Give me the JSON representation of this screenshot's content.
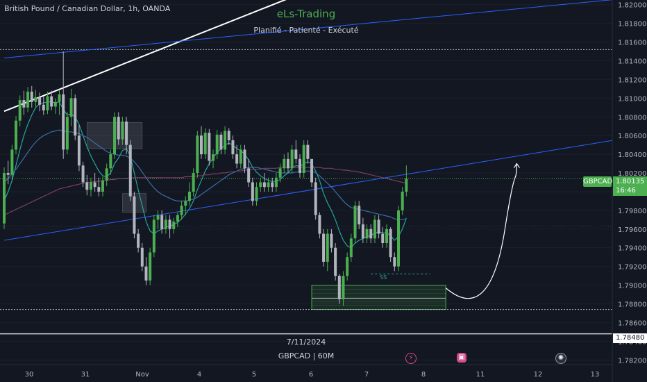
{
  "symbol_title": "British Pound / Canadian Dollar, 1h, OANDA",
  "watermark": {
    "title": "eLs-Trading",
    "subtitle": "Planifié - Patienté - Exécuté"
  },
  "date_label": "7/11/2024",
  "interval_label": "GBPCAD | 60M",
  "price_badge": "GBPCAD",
  "last_price": {
    "value": "1.80135",
    "countdown": "16:46"
  },
  "hline_price": "1.78480",
  "level_label": "SS",
  "bottom_icons": [
    "lightning-icon",
    "calendar-icon",
    "flag-icon"
  ],
  "colors": {
    "background": "#131722",
    "up": "#4caf50",
    "down": "#b2b5be",
    "zone": "#4caf50",
    "accent": "#4caf50"
  },
  "chart_data": {
    "type": "candlestick",
    "ylim": [
      1.7815,
      1.8205
    ],
    "y_ticks": [
      "1.82000",
      "1.81800",
      "1.81600",
      "1.81400",
      "1.81200",
      "1.81000",
      "1.80800",
      "1.80600",
      "1.80400",
      "1.80200",
      "1.80000",
      "1.79800",
      "1.79600",
      "1.79400",
      "1.79200",
      "1.79000",
      "1.78800",
      "1.78600",
      "1.78400",
      "1.78200"
    ],
    "x_ticks": [
      "30",
      "31",
      "Nov",
      "4",
      "5",
      "6",
      "7",
      "8",
      "11",
      "12",
      "13"
    ],
    "candles": [
      [
        1.7966,
        1.8026,
        1.796,
        1.802
      ],
      [
        1.802,
        1.8033,
        1.8008,
        1.8018
      ],
      [
        1.8018,
        1.805,
        1.8012,
        1.8045
      ],
      [
        1.8045,
        1.8081,
        1.804,
        1.8076
      ],
      [
        1.8076,
        1.8103,
        1.807,
        1.8098
      ],
      [
        1.8098,
        1.8108,
        1.8082,
        1.809
      ],
      [
        1.809,
        1.8112,
        1.8085,
        1.8107
      ],
      [
        1.8107,
        1.8113,
        1.809,
        1.8096
      ],
      [
        1.8096,
        1.8109,
        1.8091,
        1.8101
      ],
      [
        1.8101,
        1.8106,
        1.8086,
        1.8093
      ],
      [
        1.8093,
        1.8102,
        1.8082,
        1.8087
      ],
      [
        1.8087,
        1.8107,
        1.8083,
        1.8102
      ],
      [
        1.8102,
        1.8108,
        1.8087,
        1.8091
      ],
      [
        1.8091,
        1.81,
        1.8083,
        1.8096
      ],
      [
        1.8096,
        1.8109,
        1.8082,
        1.8104
      ],
      [
        1.8104,
        1.815,
        1.8035,
        1.8045
      ],
      [
        1.8045,
        1.8085,
        1.804,
        1.808
      ],
      [
        1.808,
        1.811,
        1.807,
        1.81
      ],
      [
        1.81,
        1.8104,
        1.8055,
        1.806
      ],
      [
        1.806,
        1.8071,
        1.8022,
        1.8028
      ],
      [
        1.8028,
        1.8032,
        1.8005,
        1.801
      ],
      [
        1.801,
        1.8018,
        1.7996,
        1.8002
      ],
      [
        1.8002,
        1.8015,
        1.7995,
        1.801
      ],
      [
        1.801,
        1.802,
        1.8,
        1.8005
      ],
      [
        1.8005,
        1.8015,
        1.7995,
        1.8
      ],
      [
        1.8,
        1.8016,
        1.7995,
        1.8012
      ],
      [
        1.8012,
        1.803,
        1.8006,
        1.8025
      ],
      [
        1.8025,
        1.8045,
        1.8018,
        1.804
      ],
      [
        1.804,
        1.8085,
        1.8035,
        1.808
      ],
      [
        1.808,
        1.8085,
        1.805,
        1.8056
      ],
      [
        1.8056,
        1.808,
        1.805,
        1.8075
      ],
      [
        1.8075,
        1.808,
        1.804,
        1.805
      ],
      [
        1.805,
        1.8055,
        1.799,
        1.7995
      ],
      [
        1.7995,
        1.8,
        1.795,
        1.7955
      ],
      [
        1.7955,
        1.796,
        1.7935,
        1.794
      ],
      [
        1.794,
        1.7945,
        1.7915,
        1.792
      ],
      [
        1.792,
        1.793,
        1.79,
        1.7905
      ],
      [
        1.7905,
        1.794,
        1.79,
        1.7935
      ],
      [
        1.7935,
        1.7975,
        1.793,
        1.797
      ],
      [
        1.797,
        1.798,
        1.796,
        1.7975
      ],
      [
        1.7975,
        1.798,
        1.7955,
        1.796
      ],
      [
        1.796,
        1.7975,
        1.7955,
        1.797
      ],
      [
        1.797,
        1.7975,
        1.795,
        1.796
      ],
      [
        1.796,
        1.7972,
        1.7955,
        1.7968
      ],
      [
        1.7968,
        1.7978,
        1.7962,
        1.7975
      ],
      [
        1.7975,
        1.799,
        1.797,
        1.7985
      ],
      [
        1.7985,
        1.7995,
        1.7975,
        1.799
      ],
      [
        1.799,
        1.801,
        1.7985,
        1.8
      ],
      [
        1.8,
        1.8025,
        1.7995,
        1.802
      ],
      [
        1.802,
        1.8065,
        1.8015,
        1.806
      ],
      [
        1.806,
        1.807,
        1.8035,
        1.804
      ],
      [
        1.804,
        1.8068,
        1.8035,
        1.8063
      ],
      [
        1.8063,
        1.8067,
        1.8028,
        1.8033
      ],
      [
        1.8033,
        1.8045,
        1.8025,
        1.804
      ],
      [
        1.804,
        1.8066,
        1.8035,
        1.8061
      ],
      [
        1.8061,
        1.8064,
        1.804,
        1.8045
      ],
      [
        1.8045,
        1.807,
        1.804,
        1.8065
      ],
      [
        1.8065,
        1.8068,
        1.805,
        1.8055
      ],
      [
        1.8055,
        1.806,
        1.8035,
        1.804
      ],
      [
        1.804,
        1.805,
        1.8025,
        1.803
      ],
      [
        1.803,
        1.805,
        1.8025,
        1.8045
      ],
      [
        1.8045,
        1.805,
        1.802,
        1.8025
      ],
      [
        1.8025,
        1.8035,
        1.8005,
        1.801
      ],
      [
        1.801,
        1.8015,
        1.7985,
        1.799
      ],
      [
        1.799,
        1.801,
        1.7985,
        1.8005
      ],
      [
        1.8005,
        1.8015,
        1.8,
        1.801
      ],
      [
        1.801,
        1.802,
        1.8,
        1.8005
      ],
      [
        1.8005,
        1.8015,
        1.8,
        1.801
      ],
      [
        1.801,
        1.8015,
        1.8,
        1.8005
      ],
      [
        1.8005,
        1.802,
        1.8,
        1.8015
      ],
      [
        1.8015,
        1.803,
        1.801,
        1.8025
      ],
      [
        1.8025,
        1.804,
        1.802,
        1.8035
      ],
      [
        1.8035,
        1.8042,
        1.802,
        1.8025
      ],
      [
        1.8025,
        1.805,
        1.802,
        1.8045
      ],
      [
        1.8045,
        1.8055,
        1.803,
        1.8035
      ],
      [
        1.8035,
        1.804,
        1.8015,
        1.802
      ],
      [
        1.802,
        1.8055,
        1.8015,
        1.805
      ],
      [
        1.805,
        1.8055,
        1.803,
        1.8035
      ],
      [
        1.8035,
        1.8035,
        1.8005,
        1.801
      ],
      [
        1.801,
        1.8015,
        1.797,
        1.7975
      ],
      [
        1.7975,
        1.7978,
        1.795,
        1.7955
      ],
      [
        1.7955,
        1.796,
        1.792,
        1.7925
      ],
      [
        1.7925,
        1.796,
        1.7915,
        1.7955
      ],
      [
        1.7955,
        1.796,
        1.7935,
        1.794
      ],
      [
        1.794,
        1.7945,
        1.7905,
        1.791
      ],
      [
        1.791,
        1.7912,
        1.788,
        1.7885
      ],
      [
        1.7885,
        1.7915,
        1.7878,
        1.791
      ],
      [
        1.791,
        1.7935,
        1.7905,
        1.793
      ],
      [
        1.793,
        1.7955,
        1.7925,
        1.795
      ],
      [
        1.795,
        1.799,
        1.7945,
        1.7985
      ],
      [
        1.7985,
        1.799,
        1.796,
        1.7965
      ],
      [
        1.7965,
        1.7972,
        1.7945,
        1.795
      ],
      [
        1.795,
        1.7965,
        1.7945,
        1.796
      ],
      [
        1.796,
        1.7965,
        1.7945,
        1.795
      ],
      [
        1.795,
        1.7975,
        1.7945,
        1.797
      ],
      [
        1.797,
        1.7975,
        1.795,
        1.7955
      ],
      [
        1.7955,
        1.7962,
        1.794,
        1.7945
      ],
      [
        1.7945,
        1.7965,
        1.794,
        1.796
      ],
      [
        1.796,
        1.7962,
        1.7925,
        1.793
      ],
      [
        1.793,
        1.7935,
        1.7915,
        1.792
      ],
      [
        1.792,
        1.7985,
        1.7915,
        1.798
      ],
      [
        1.798,
        1.8005,
        1.7975,
        1.8
      ],
      [
        1.8,
        1.8028,
        1.7995,
        1.8014
      ]
    ],
    "moving_averages": [
      {
        "role": "short",
        "color": "#26a69a",
        "values": [
          1.799,
          1.8,
          1.8012,
          1.8028,
          1.8045,
          1.806,
          1.8072,
          1.8082,
          1.809,
          1.8094,
          1.8095,
          1.8096,
          1.8096,
          1.8095,
          1.8096,
          1.8088,
          1.8082,
          1.8083,
          1.808,
          1.8072,
          1.806,
          1.8048,
          1.8038,
          1.803,
          1.8022,
          1.8017,
          1.8016,
          1.802,
          1.803,
          1.8036,
          1.8044,
          1.8046,
          1.8038,
          1.802,
          1.8002,
          1.7985,
          1.7968,
          1.7958,
          1.7955,
          1.7958,
          1.796,
          1.7962,
          1.7963,
          1.7965,
          1.7967,
          1.7971,
          1.7976,
          1.7982,
          1.799,
          1.8002,
          1.8012,
          1.8022,
          1.803,
          1.8036,
          1.8042,
          1.8046,
          1.805,
          1.8052,
          1.805,
          1.8046,
          1.8044,
          1.804,
          1.8034,
          1.8026,
          1.8021,
          1.8017,
          1.8014,
          1.8012,
          1.8011,
          1.8011,
          1.8013,
          1.8017,
          1.802,
          1.8025,
          1.8028,
          1.8027,
          1.803,
          1.8032,
          1.803,
          1.8022,
          1.8012,
          1.7998,
          1.7988,
          1.798,
          1.797,
          1.7958,
          1.7948,
          1.7942,
          1.794,
          1.7945,
          1.7948,
          1.795,
          1.7952,
          1.7953,
          1.7956,
          1.7957,
          1.7956,
          1.7956,
          1.7953,
          1.7948,
          1.7952,
          1.796,
          1.7972
        ]
      },
      {
        "role": "mid",
        "color": "#3a6fa8",
        "values": [
          1.801,
          1.8014,
          1.8019,
          1.8024,
          1.803,
          1.8036,
          1.8042,
          1.8048,
          1.8053,
          1.8057,
          1.806,
          1.8062,
          1.8064,
          1.8065,
          1.8066,
          1.8065,
          1.8064,
          1.8064,
          1.8063,
          1.8062,
          1.806,
          1.8058,
          1.8055,
          1.8052,
          1.8049,
          1.8046,
          1.8043,
          1.8041,
          1.804,
          1.8039,
          1.8039,
          1.8038,
          1.8036,
          1.8032,
          1.8027,
          1.8021,
          1.8015,
          1.8009,
          1.8004,
          1.8,
          1.7997,
          1.7995,
          1.7993,
          1.7991,
          1.799,
          1.799,
          1.799,
          1.7991,
          1.7992,
          1.7994,
          1.7997,
          1.8,
          1.8003,
          1.8006,
          1.8009,
          1.8012,
          1.8015,
          1.8018,
          1.802,
          1.8022,
          1.8024,
          1.8025,
          1.8026,
          1.8026,
          1.8026,
          1.8025,
          1.8024,
          1.8023,
          1.8022,
          1.8021,
          1.802,
          1.802,
          1.802,
          1.802,
          1.8021,
          1.8021,
          1.8022,
          1.8022,
          1.8022,
          1.802,
          1.8017,
          1.8013,
          1.8009,
          1.8005,
          1.8,
          1.7995,
          1.799,
          1.7986,
          1.7983,
          1.7982,
          1.7981,
          1.798,
          1.7979,
          1.7978,
          1.7977,
          1.7976,
          1.7975,
          1.7974,
          1.7973,
          1.7971,
          1.797,
          1.797,
          1.7971
        ]
      },
      {
        "role": "long",
        "color": "#7a3f62",
        "values": [
          1.7975,
          1.7977,
          1.7979,
          1.7981,
          1.7983,
          1.7985,
          1.7987,
          1.7989,
          1.7991,
          1.7993,
          1.7995,
          1.7997,
          1.7999,
          1.8001,
          1.8003,
          1.8004,
          1.8005,
          1.8006,
          1.8007,
          1.8008,
          1.8009,
          1.801,
          1.801,
          1.8011,
          1.8011,
          1.8012,
          1.8012,
          1.8013,
          1.8013,
          1.8014,
          1.8014,
          1.8014,
          1.8015,
          1.8015,
          1.8015,
          1.8015,
          1.8015,
          1.8015,
          1.8015,
          1.8015,
          1.8015,
          1.8015,
          1.8015,
          1.8015,
          1.8015,
          1.8015,
          1.8016,
          1.8016,
          1.8016,
          1.8017,
          1.8017,
          1.8018,
          1.8018,
          1.8019,
          1.8019,
          1.802,
          1.802,
          1.8021,
          1.8021,
          1.8022,
          1.8022,
          1.8023,
          1.8023,
          1.8024,
          1.8024,
          1.8024,
          1.8025,
          1.8025,
          1.8025,
          1.8025,
          1.8026,
          1.8026,
          1.8026,
          1.8026,
          1.8026,
          1.8026,
          1.8026,
          1.8026,
          1.8026,
          1.8026,
          1.8026,
          1.8025,
          1.8025,
          1.8025,
          1.8024,
          1.8024,
          1.8023,
          1.8023,
          1.8022,
          1.8022,
          1.8021,
          1.802,
          1.8019,
          1.8018,
          1.8017,
          1.8016,
          1.8015,
          1.8014,
          1.8013,
          1.8012,
          1.8011,
          1.801,
          1.8009
        ]
      }
    ],
    "trendline_upper": [
      [
        0,
        1.8086
      ],
      [
        104,
        1.826
      ]
    ],
    "trendline_lower": [
      [
        0,
        1.7948
      ],
      [
        104,
        1.802
      ]
    ],
    "channel_line": [
      [
        0,
        1.8143
      ],
      [
        104,
        1.8185
      ]
    ],
    "hline_dotted_top": 1.8152,
    "hline_dotted_bottom": 1.7874,
    "hline_dotted_mid": 1.8014,
    "hline_dotted_level": 1.7963,
    "hline_solid": 1.7848,
    "level_line": {
      "price": 1.7912,
      "from": 93,
      "to": 108
    },
    "zone_main": {
      "from": 78,
      "to": 112,
      "top": 1.79,
      "bottom": 1.7874
    },
    "zone_gray_1": {
      "from": 21,
      "to": 35,
      "top": 1.8074,
      "bottom": 1.8046
    },
    "zone_gray_2": {
      "from": 30,
      "to": 36,
      "top": 1.7998,
      "bottom": 1.7978
    },
    "forecast_curve": [
      [
        112,
        1.7897
      ],
      [
        118,
        1.788
      ],
      [
        124,
        1.7885
      ],
      [
        127,
        1.796
      ],
      [
        130,
        1.803
      ]
    ]
  }
}
